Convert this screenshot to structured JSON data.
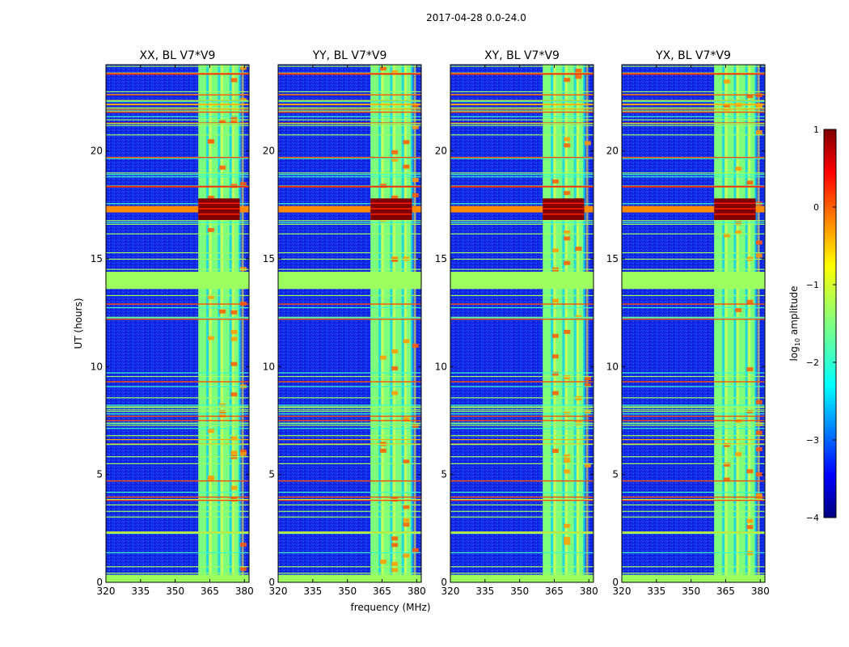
{
  "figure": {
    "suptitle": "2017-04-28 0.0-24.0",
    "xlabel": "frequency (MHz)",
    "ylabel": "UT (hours)"
  },
  "chart_data": {
    "type": "heatmap",
    "x_range": [
      320,
      382
    ],
    "y_range": [
      0,
      24
    ],
    "x_ticks": [
      320,
      335,
      350,
      365,
      380
    ],
    "y_ticks": [
      0,
      5,
      10,
      15,
      20
    ],
    "panels": [
      {
        "title": "XX, BL V7*V9",
        "pol": "XX",
        "baseline": "V7*V9"
      },
      {
        "title": "YY, BL V7*V9",
        "pol": "YY",
        "baseline": "V7*V9"
      },
      {
        "title": "XY, BL V7*V9",
        "pol": "XY",
        "baseline": "V7*V9"
      },
      {
        "title": "YX, BL V7*V9",
        "pol": "YX",
        "baseline": "V7*V9"
      }
    ],
    "band": {
      "freq_start_mhz": 360,
      "freq_end_mhz": 378,
      "column_centers_mhz": [
        364,
        369,
        374,
        378
      ],
      "note": "broadband RFI block, strongest around UT 16.8-17.8"
    },
    "strong_rfi_time": [
      16.8,
      17.8
    ],
    "flagged_time_band": [
      13.6,
      14.4
    ],
    "colorbar": {
      "label": "log10 amplitude",
      "label_base": "log",
      "label_sub": "10",
      "label_rest": " amplitude",
      "min": -4,
      "max": 1,
      "ticks": [
        "1",
        "0",
        "−1",
        "−2",
        "−3",
        "−4"
      ],
      "tick_values": [
        1,
        0,
        -1,
        -2,
        -3,
        -4
      ],
      "colormap": "jet"
    }
  }
}
